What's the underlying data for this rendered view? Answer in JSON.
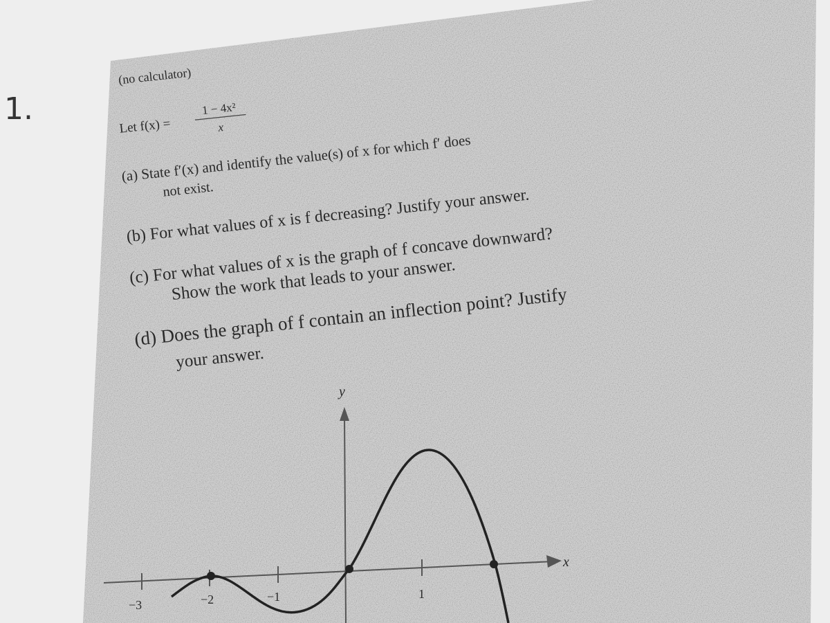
{
  "page": {
    "problem_number": "1.",
    "note": "(no calculator)",
    "definition": {
      "lead": "Let f(x) =",
      "numerator": "1 − 4x²",
      "denominator": "x"
    },
    "parts": [
      {
        "lines": [
          "(a) State f′(x) and identify the value(s) of x for which f′ does",
          "not exist."
        ]
      },
      {
        "lines": [
          "(b) For what values of x is f decreasing? Justify your answer."
        ]
      },
      {
        "lines": [
          "(c) For what values of x is the graph of f concave downward?",
          "Show the work that leads to your answer."
        ]
      },
      {
        "lines": [
          "(d) Does the graph of f contain an inflection point? Justify",
          "your answer."
        ]
      }
    ]
  },
  "graph": {
    "y_label": "y",
    "x_label": "x",
    "tick_labels": [
      "−3",
      "−2",
      "−1",
      "1"
    ]
  }
}
